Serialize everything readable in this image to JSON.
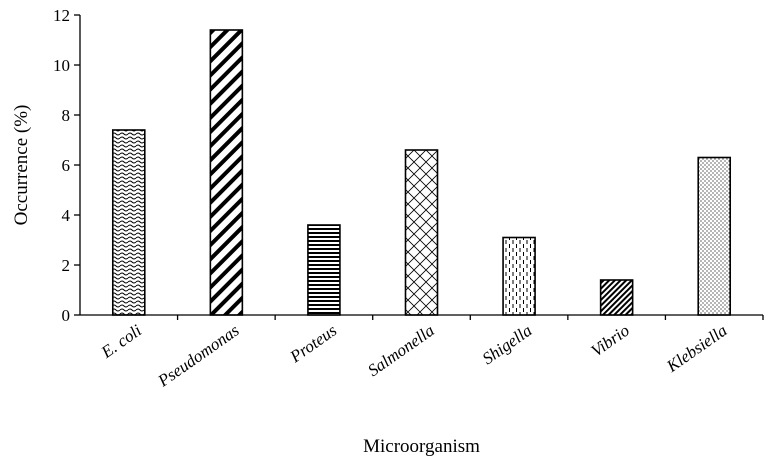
{
  "chart_data": {
    "type": "bar",
    "title": "",
    "xlabel": "Microorganism",
    "ylabel": "Occurrence (%)",
    "ylim": [
      0,
      12
    ],
    "yticks": [
      "0",
      "2",
      "4",
      "6",
      "8",
      "10",
      "12"
    ],
    "grid": false,
    "legend": "none",
    "categories": [
      "E. coli",
      "Pseudomonas",
      "Proteus",
      "Salmonella",
      "Shigella",
      "Vibrio",
      "Klebsiella"
    ],
    "values": [
      7.4,
      11.4,
      3.6,
      6.6,
      3.1,
      1.4,
      6.3
    ],
    "bar_patterns": [
      "wave",
      "wide-diagonal",
      "horizontal",
      "diamond",
      "dashed-vertical",
      "dense-diagonal",
      "dots"
    ],
    "bar_color": "#000000"
  }
}
